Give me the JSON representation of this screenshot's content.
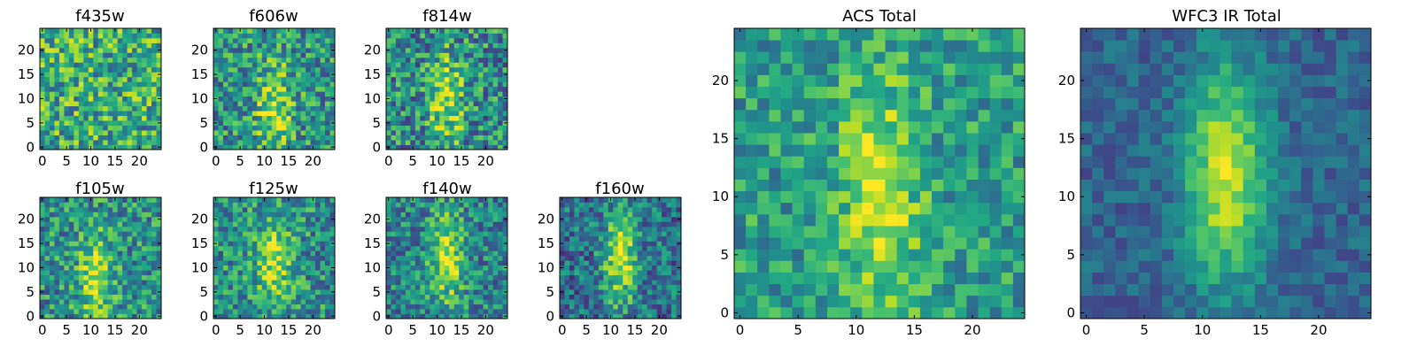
{
  "chart_data": {
    "type": "heatmap",
    "colormap": "viridis",
    "grid": false,
    "panels": [
      {
        "id": "f435w",
        "title": "f435w",
        "grid_size": 25,
        "x_ticks": [
          "0",
          "5",
          "10",
          "15",
          "20"
        ],
        "y_ticks": [
          "0",
          "5",
          "10",
          "15",
          "20"
        ],
        "xlim": [
          0,
          24
        ],
        "ylim": [
          0,
          24
        ],
        "pattern": {
          "center_x": 12,
          "center_y": 12,
          "peak": 0.0,
          "noise": 0.32,
          "base": 0.62,
          "seed": 11
        }
      },
      {
        "id": "f606w",
        "title": "f606w",
        "grid_size": 25,
        "x_ticks": [
          "0",
          "5",
          "10",
          "15",
          "20"
        ],
        "y_ticks": [
          "0",
          "5",
          "10",
          "15",
          "20"
        ],
        "xlim": [
          0,
          24
        ],
        "ylim": [
          0,
          24
        ],
        "pattern": {
          "center_x": 12,
          "center_y": 8,
          "peak": 0.35,
          "noise": 0.3,
          "base": 0.52,
          "seed": 23
        }
      },
      {
        "id": "f814w",
        "title": "f814w",
        "grid_size": 25,
        "x_ticks": [
          "0",
          "5",
          "10",
          "15",
          "20"
        ],
        "y_ticks": [
          "0",
          "5",
          "10",
          "15",
          "20"
        ],
        "xlim": [
          0,
          24
        ],
        "ylim": [
          0,
          24
        ],
        "pattern": {
          "center_x": 12,
          "center_y": 10,
          "peak": 0.4,
          "noise": 0.32,
          "base": 0.48,
          "seed": 37
        }
      },
      {
        "id": "f105w",
        "title": "f105w",
        "grid_size": 25,
        "x_ticks": [
          "0",
          "5",
          "10",
          "15",
          "20"
        ],
        "y_ticks": [
          "0",
          "5",
          "10",
          "15",
          "20"
        ],
        "xlim": [
          0,
          24
        ],
        "ylim": [
          0,
          24
        ],
        "pattern": {
          "center_x": 11,
          "center_y": 8,
          "peak": 0.4,
          "noise": 0.28,
          "base": 0.5,
          "seed": 41
        }
      },
      {
        "id": "f125w",
        "title": "f125w",
        "grid_size": 25,
        "x_ticks": [
          "0",
          "5",
          "10",
          "15",
          "20"
        ],
        "y_ticks": [
          "0",
          "5",
          "10",
          "15",
          "20"
        ],
        "xlim": [
          0,
          24
        ],
        "ylim": [
          0,
          24
        ],
        "pattern": {
          "center_x": 12,
          "center_y": 11,
          "peak": 0.4,
          "noise": 0.28,
          "base": 0.5,
          "seed": 53
        }
      },
      {
        "id": "f140w",
        "title": "f140w",
        "grid_size": 25,
        "x_ticks": [
          "0",
          "5",
          "10",
          "15",
          "20"
        ],
        "y_ticks": [
          "0",
          "5",
          "10",
          "15",
          "20"
        ],
        "xlim": [
          0,
          24
        ],
        "ylim": [
          0,
          24
        ],
        "pattern": {
          "center_x": 12,
          "center_y": 12,
          "peak": 0.45,
          "noise": 0.26,
          "base": 0.45,
          "seed": 67
        }
      },
      {
        "id": "f160w",
        "title": "f160w",
        "grid_size": 25,
        "x_ticks": [
          "0",
          "5",
          "10",
          "15",
          "20"
        ],
        "y_ticks": [
          "0",
          "5",
          "10",
          "15",
          "20"
        ],
        "xlim": [
          0,
          24
        ],
        "ylim": [
          0,
          24
        ],
        "pattern": {
          "center_x": 12,
          "center_y": 12,
          "peak": 0.55,
          "noise": 0.26,
          "base": 0.38,
          "seed": 79
        }
      },
      {
        "id": "acs-total",
        "title": "ACS Total",
        "grid_size": 25,
        "x_ticks": [
          "0",
          "5",
          "10",
          "15",
          "20"
        ],
        "y_ticks": [
          "0",
          "5",
          "10",
          "15",
          "20"
        ],
        "xlim": [
          0,
          24
        ],
        "ylim": [
          0,
          24
        ],
        "pattern": {
          "center_x": 12,
          "center_y": 10,
          "peak": 0.38,
          "noise": 0.22,
          "base": 0.55,
          "seed": 89
        }
      },
      {
        "id": "wfc3-ir-total",
        "title": "WFC3 IR Total",
        "grid_size": 25,
        "x_ticks": [
          "0",
          "5",
          "10",
          "15",
          "20"
        ],
        "y_ticks": [
          "0",
          "5",
          "10",
          "15",
          "20"
        ],
        "xlim": [
          0,
          24
        ],
        "ylim": [
          0,
          24
        ],
        "pattern": {
          "center_x": 12,
          "center_y": 12,
          "peak": 0.6,
          "noise": 0.12,
          "base": 0.32,
          "seed": 97
        }
      }
    ]
  }
}
